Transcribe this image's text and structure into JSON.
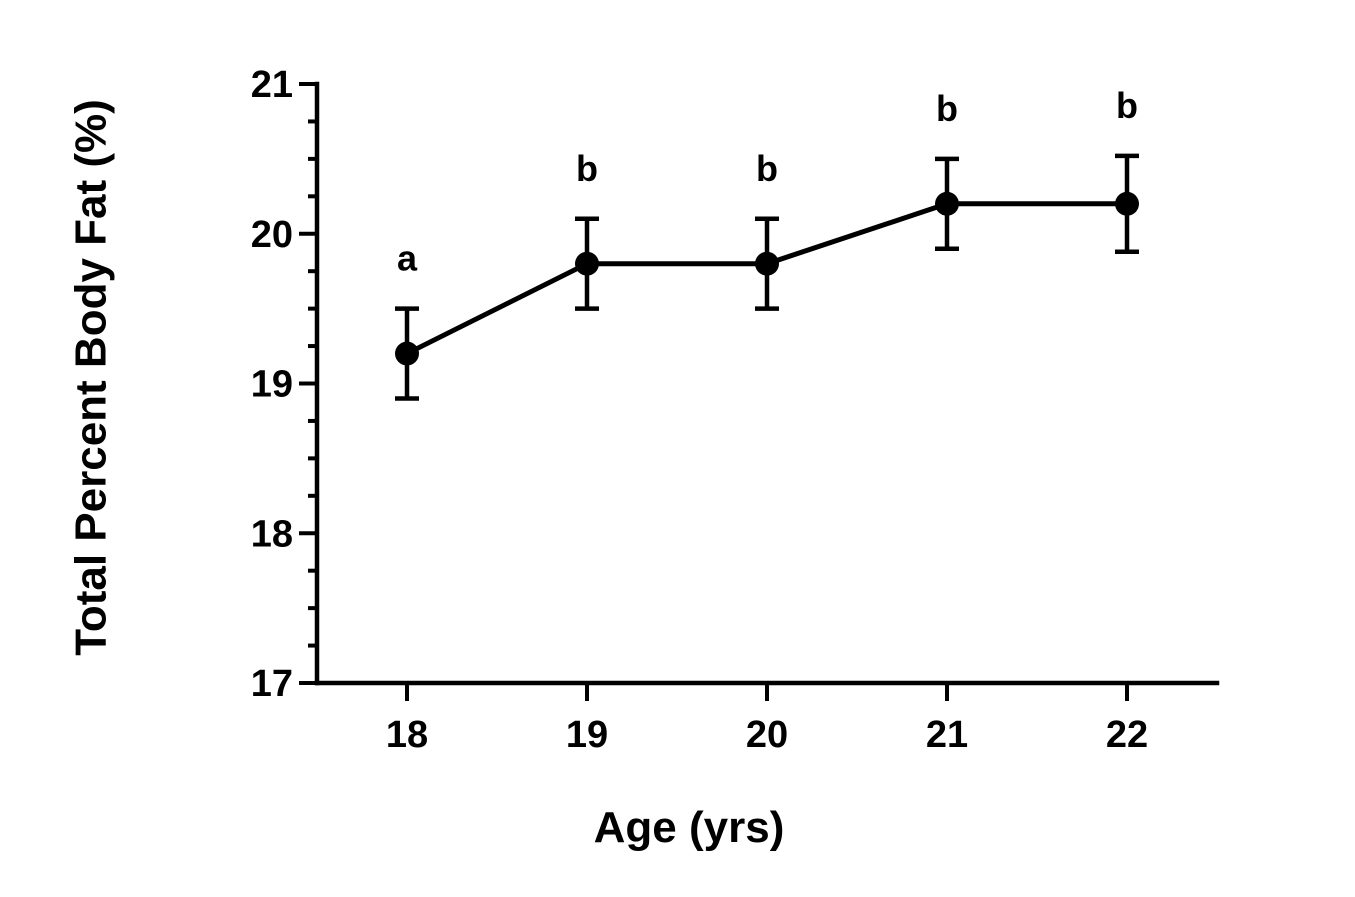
{
  "chart_data": {
    "type": "line",
    "xlabel": "Age (yrs)",
    "ylabel": "Total Percent Body Fat (%)",
    "x": [
      18,
      19,
      20,
      21,
      22
    ],
    "x_tick_labels": [
      "18",
      "19",
      "20",
      "21",
      "22"
    ],
    "ylim": [
      17,
      21
    ],
    "y_ticks": [
      17,
      18,
      19,
      20,
      21
    ],
    "y_tick_labels": [
      "17",
      "18",
      "19",
      "20",
      "21"
    ],
    "y_minor_step": 0.25,
    "xlim": [
      17.5,
      22.5
    ],
    "series": [
      {
        "values": [
          19.2,
          19.8,
          19.8,
          20.2,
          20.2
        ],
        "error_upper": [
          19.5,
          20.1,
          20.1,
          20.5,
          20.52
        ],
        "error_lower": [
          18.9,
          19.5,
          19.5,
          19.9,
          19.88
        ],
        "annotations": [
          "a",
          "b",
          "b",
          "b",
          "b"
        ],
        "color": "#000000"
      }
    ],
    "grid": false,
    "legend": "none"
  }
}
